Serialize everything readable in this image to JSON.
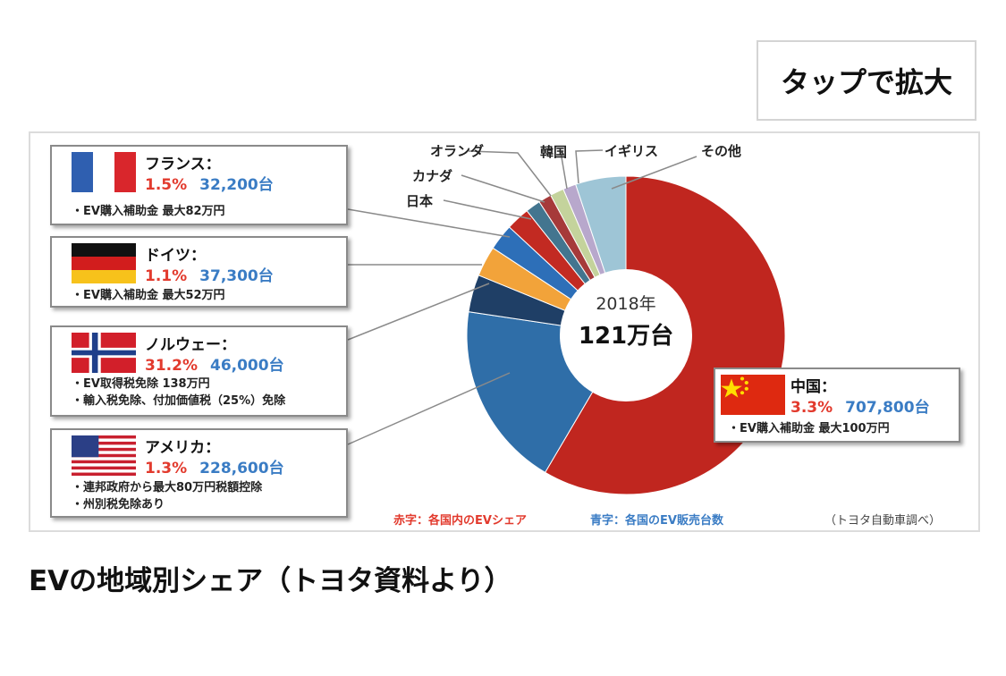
{
  "button": {
    "label": "タップで拡大"
  },
  "caption": "EVの地域別シェア（トヨタ資料より）",
  "chart_data": {
    "type": "pie",
    "center": {
      "year": "2018年",
      "total": "121万台"
    },
    "slices": [
      {
        "label": "中国",
        "value": 707800,
        "color": "#c0261f"
      },
      {
        "label": "アメリカ",
        "value": 228600,
        "color": "#2f6ea8"
      },
      {
        "label": "ノルウェー",
        "value": 46000,
        "color": "#1f3f66"
      },
      {
        "label": "ドイツ",
        "value": 37300,
        "color": "#f2a33a"
      },
      {
        "label": "フランス",
        "value": 32200,
        "color": "#2d6fb8"
      },
      {
        "label": "日本",
        "value": 29000,
        "color": "#c22a22"
      },
      {
        "label": "カナダ",
        "value": 18500,
        "color": "#43758f"
      },
      {
        "label": "オランダ",
        "value": 16000,
        "color": "#a63a3a"
      },
      {
        "label": "韓国",
        "value": 17000,
        "color": "#c4d39c"
      },
      {
        "label": "イギリス",
        "value": 16000,
        "color": "#b8a8cc"
      },
      {
        "label": "その他",
        "value": 62000,
        "color": "#9ec5d6"
      }
    ],
    "slice_labels": {
      "japan": "日本",
      "canada": "カナダ",
      "netherlands": "オランダ",
      "korea": "韓国",
      "uk": "イギリス",
      "other": "その他"
    },
    "countries": [
      {
        "key": "france",
        "name": "フランス：",
        "share": "1.5%",
        "sales": "32,200台",
        "notes": [
          "・EV購入補助金 最大82万円"
        ]
      },
      {
        "key": "germany",
        "name": "ドイツ：",
        "share": "1.1%",
        "sales": "37,300台",
        "notes": [
          "・EV購入補助金 最大52万円"
        ]
      },
      {
        "key": "norway",
        "name": "ノルウェー：",
        "share": "31.2%",
        "sales": "46,000台",
        "notes": [
          "・EV取得税免除 138万円",
          "・輸入税免除、付加価値税（25%）免除"
        ]
      },
      {
        "key": "usa",
        "name": "アメリカ：",
        "share": "1.3%",
        "sales": "228,600台",
        "notes": [
          "・連邦政府から最大80万円税額控除",
          "・州別税免除あり"
        ]
      },
      {
        "key": "china",
        "name": "中国：",
        "share": "3.3%",
        "sales": "707,800台",
        "notes": [
          "・EV購入補助金 最大100万円"
        ]
      }
    ],
    "legend": {
      "red": "赤字：各国内のEVシェア",
      "blue": "青字：各国のEV販売台数",
      "source": "（トヨタ自動車調べ）"
    }
  }
}
